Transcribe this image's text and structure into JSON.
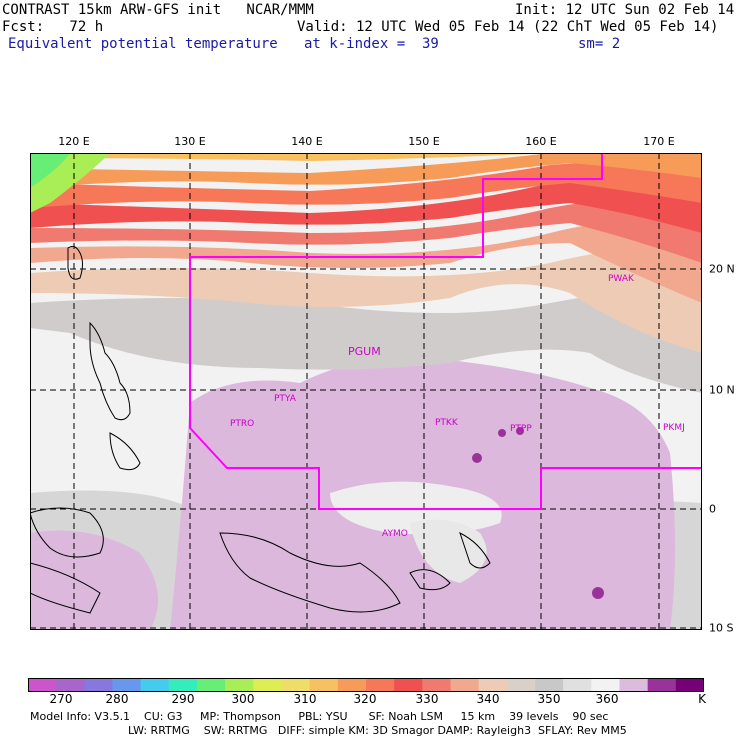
{
  "header": {
    "line1_left": "CONTRAST 15km ARW-GFS init   NCAR/MMM",
    "line1_right": "Init: 12 UTC Sun 02 Feb 14",
    "line2_left": "Fcst:   72 h",
    "line2_right": "Valid: 12 UTC Wed 05 Feb 14 (22 ChT Wed 05 Feb 14)",
    "line3_left": "Equivalent potential temperature",
    "line3_mid": "at k-index =  39",
    "line3_right": "sm= 2"
  },
  "map": {
    "lon_labels": [
      "120 E",
      "130 E",
      "140 E",
      "150 E",
      "160 E",
      "170 E"
    ],
    "lat_labels": [
      "20 N",
      "10 N",
      "0",
      "10 S"
    ],
    "stations": [
      "PGUM",
      "PTYA",
      "PTRO",
      "PTKK",
      "PTPP",
      "PKMJ",
      "PWAK",
      "AYMO"
    ]
  },
  "colorbar": {
    "colors": [
      "#cc55cc",
      "#a866cc",
      "#8877dd",
      "#6699ee",
      "#44ccee",
      "#33eebb",
      "#66ee77",
      "#aaee55",
      "#ddee55",
      "#eedd66",
      "#f7c060",
      "#f79c58",
      "#f77858",
      "#f05050",
      "#f07a70",
      "#f2a88e",
      "#eecbb4",
      "#d9d0c8",
      "#c8c8c8",
      "#e0e0e0",
      "#f2f2f2",
      "#ddbbdd",
      "#993399",
      "#770077"
    ],
    "labels": [
      "270",
      "280",
      "290",
      "300",
      "310",
      "320",
      "330",
      "340",
      "350",
      "360",
      "K"
    ]
  },
  "footer": {
    "line1": "Model Info: V3.5.1    CU: G3     MP: Thompson     PBL: YSU      SF: Noah LSM     15 km    39 levels    90 sec",
    "line2": "LW: RRTMG    SW: RRTMG   DIFF: simple KM: 3D Smagor DAMP: Rayleigh3  SFLAY: Rev MM5"
  }
}
